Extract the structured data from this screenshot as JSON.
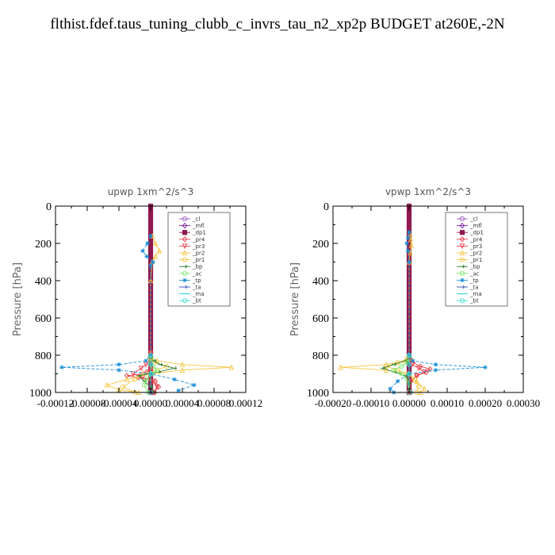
{
  "title": "flthist.fdef.taus_tuning_clubb_c_invrs_tau_n2_xp2p  BUDGET at260E,-2N",
  "chart_data": [
    {
      "type": "line",
      "title": "upwp   1xm^2/s^3",
      "ylabel": "Pressure [hPa]",
      "ylim": [
        1000,
        0
      ],
      "xlim": [
        -0.00012,
        0.00012
      ],
      "yticks": [
        "0",
        "200",
        "400",
        "600",
        "800",
        "1000"
      ],
      "xticks": [
        "-0.00012",
        "-0.00008",
        "-0.00004",
        "0.00000",
        "0.00004",
        "0.00008",
        "0.00012"
      ],
      "legend_placement": "top-right",
      "series": [
        {
          "name": "_cl",
          "color": "#9b59b6",
          "marker": "circle",
          "x": [
            0,
            0,
            0,
            0,
            0,
            0,
            0,
            0,
            0,
            0,
            0,
            0,
            0,
            0,
            0,
            0,
            0,
            0,
            0,
            0,
            0,
            0,
            0,
            0,
            0,
            0,
            0,
            0,
            0,
            0,
            0,
            0,
            0,
            0,
            0,
            0,
            0,
            0,
            0,
            0,
            0,
            0
          ],
          "y": [
            0,
            25,
            50,
            75,
            100,
            125,
            150,
            175,
            200,
            225,
            250,
            275,
            300,
            325,
            350,
            375,
            400,
            425,
            450,
            475,
            500,
            525,
            550,
            575,
            600,
            625,
            650,
            675,
            700,
            725,
            750,
            775,
            800,
            825,
            850,
            875,
            900,
            925,
            950,
            975,
            990,
            1000
          ]
        },
        {
          "name": "_mfl",
          "color": "#7b1fa2",
          "marker": "diamond",
          "x": [
            0,
            0,
            0,
            0,
            0,
            0,
            0,
            0,
            0,
            0,
            0,
            0,
            0,
            0,
            0,
            0,
            0,
            0,
            0,
            0,
            0,
            0,
            0,
            0,
            0,
            0,
            0,
            0,
            0,
            0,
            0,
            0,
            0,
            0,
            0,
            0,
            0,
            0,
            0,
            0,
            0,
            0
          ],
          "y": [
            0,
            25,
            50,
            75,
            100,
            125,
            150,
            175,
            200,
            225,
            250,
            275,
            300,
            325,
            350,
            375,
            400,
            425,
            450,
            475,
            500,
            525,
            550,
            575,
            600,
            625,
            650,
            675,
            700,
            725,
            750,
            775,
            800,
            825,
            850,
            875,
            900,
            925,
            950,
            975,
            990,
            1000
          ]
        },
        {
          "name": "_dp1",
          "color": "#8e1a4f",
          "marker": "square",
          "x": [
            0,
            0,
            0,
            0,
            0,
            0,
            0,
            0,
            0,
            0,
            0,
            0,
            0,
            0,
            0,
            0,
            0,
            0,
            0,
            0,
            0,
            0,
            0,
            0,
            0,
            0,
            0,
            0,
            0,
            0,
            0,
            0,
            0,
            0,
            0,
            0,
            0,
            0,
            0,
            0,
            0,
            0
          ],
          "y": [
            0,
            25,
            50,
            75,
            100,
            125,
            150,
            175,
            200,
            225,
            250,
            275,
            300,
            325,
            350,
            375,
            400,
            425,
            450,
            475,
            500,
            525,
            550,
            575,
            600,
            625,
            650,
            675,
            700,
            725,
            750,
            775,
            800,
            825,
            850,
            875,
            900,
            925,
            950,
            975,
            990,
            1000
          ]
        },
        {
          "name": "_pr4",
          "color": "#e8404a",
          "marker": "diamond",
          "x": [
            0,
            0,
            0,
            0,
            0,
            0,
            0,
            0,
            0,
            0,
            0,
            -5e-06,
            -1e-05,
            -3e-05,
            -1.5e-05,
            6e-06,
            1e-05,
            5e-06
          ],
          "y": [
            780,
            790,
            800,
            810,
            820,
            830,
            840,
            850,
            860,
            870,
            880,
            890,
            900,
            910,
            920,
            940,
            970,
            1000
          ]
        },
        {
          "name": "_pr3",
          "color": "#e8404a",
          "marker": "triangle-down",
          "x": [
            0,
            0,
            0,
            0,
            0,
            -6e-06,
            -1.2e-05,
            -2.2e-05,
            -1e-05,
            3e-06,
            8e-06,
            4e-06
          ],
          "y": [
            790,
            800,
            810,
            820,
            830,
            850,
            870,
            900,
            920,
            940,
            970,
            1000
          ]
        },
        {
          "name": "_pr2",
          "color": "#f5c542",
          "marker": "triangle",
          "x": [
            2e-06,
            6e-06,
            1.1e-05,
            6e-06,
            2e-06,
            0,
            0,
            8e-06,
            4e-05,
            0.000102,
            4e-05,
            0,
            -3e-05,
            -5.5e-05,
            -4e-05,
            -1.5e-05
          ],
          "y": [
            160,
            200,
            240,
            270,
            300,
            400,
            810,
            830,
            850,
            865,
            880,
            900,
            930,
            960,
            985,
            1000
          ]
        },
        {
          "name": "_pr1",
          "color": "#f5c542",
          "marker": "circle",
          "x": [
            0,
            0,
            5e-06,
            2e-05,
            8e-06,
            -1e-05,
            -2e-05,
            -3.5e-05,
            -2e-05
          ],
          "y": [
            800,
            820,
            840,
            860,
            880,
            900,
            930,
            970,
            1000
          ]
        },
        {
          "name": "_bp",
          "color": "#2e7d32",
          "marker": "arrow",
          "x": [
            0,
            4e-06,
            1.2e-05,
            3e-05,
            1e-05,
            -1.5e-05,
            -8e-06,
            0,
            4e-06
          ],
          "y": [
            810,
            830,
            850,
            870,
            890,
            910,
            940,
            970,
            1000
          ]
        },
        {
          "name": "_ac",
          "color": "#7be86b",
          "marker": "circle",
          "x": [
            0,
            0,
            3e-06,
            8e-06,
            2e-06,
            -5e-06,
            -8e-06,
            -3e-06
          ],
          "y": [
            820,
            840,
            860,
            880,
            900,
            930,
            960,
            1000
          ]
        },
        {
          "name": "_tp",
          "color": "#1a8fd6",
          "marker": "asterisk",
          "x": [
            0,
            -4e-06,
            -1e-05,
            -5e-06,
            3e-06,
            0,
            0,
            -6e-06,
            -4e-05,
            -0.000112,
            -4e-05,
            0,
            3e-05,
            5.5e-05,
            3.5e-05
          ],
          "y": [
            160,
            200,
            240,
            270,
            300,
            320,
            800,
            830,
            850,
            865,
            880,
            900,
            930,
            960,
            990
          ]
        },
        {
          "name": "_ta",
          "color": "#3f51b5",
          "marker": "arrow",
          "x": [
            0,
            0,
            0,
            0
          ],
          "y": [
            800,
            850,
            900,
            1000
          ]
        },
        {
          "name": "_ma",
          "color": "#26c6da",
          "marker": "dash",
          "x": [
            0,
            0,
            0,
            0
          ],
          "y": [
            800,
            850,
            900,
            1000
          ]
        },
        {
          "name": "_bt",
          "color": "#40e0d0",
          "marker": "circle",
          "x": [
            0,
            0,
            0,
            0
          ],
          "y": [
            800,
            850,
            900,
            1000
          ]
        }
      ]
    },
    {
      "type": "line",
      "title": "vpwp   1xm^2/s^3",
      "ylabel": "Pressure [hPa]",
      "ylim": [
        1000,
        0
      ],
      "xlim": [
        -0.0002,
        0.0003
      ],
      "yticks": [
        "0",
        "200",
        "400",
        "600",
        "800",
        "1000"
      ],
      "xticks": [
        "-0.00020",
        "-0.00010",
        "0.00000",
        "0.00010",
        "0.00020",
        "0.00030"
      ],
      "legend_placement": "top-right",
      "series": [
        {
          "name": "_cl",
          "color": "#9b59b6",
          "marker": "circle",
          "x": [
            0,
            0,
            0,
            0,
            0,
            0,
            0,
            0,
            0,
            0,
            0,
            0,
            0,
            0,
            0,
            0,
            0,
            0,
            0,
            0,
            0,
            0,
            0,
            0,
            0,
            0,
            0,
            0,
            0,
            0,
            0,
            0,
            0,
            0,
            0,
            0,
            0,
            0,
            0,
            0,
            0,
            0
          ],
          "y": [
            0,
            25,
            50,
            75,
            100,
            125,
            150,
            175,
            200,
            225,
            250,
            275,
            300,
            325,
            350,
            375,
            400,
            425,
            450,
            475,
            500,
            525,
            550,
            575,
            600,
            625,
            650,
            675,
            700,
            725,
            750,
            775,
            800,
            825,
            850,
            875,
            900,
            925,
            950,
            975,
            990,
            1000
          ]
        },
        {
          "name": "_mfl",
          "color": "#7b1fa2",
          "marker": "diamond",
          "x": [
            0,
            0,
            0,
            0,
            0,
            0,
            0,
            0,
            0,
            0,
            0,
            0,
            0,
            0,
            0,
            0,
            0,
            0,
            0,
            0,
            0,
            0,
            0,
            0,
            0,
            0,
            0,
            0,
            0,
            0,
            0,
            0,
            0,
            0,
            0,
            0,
            0,
            0,
            0,
            0,
            0,
            0
          ],
          "y": [
            0,
            25,
            50,
            75,
            100,
            125,
            150,
            175,
            200,
            225,
            250,
            275,
            300,
            325,
            350,
            375,
            400,
            425,
            450,
            475,
            500,
            525,
            550,
            575,
            600,
            625,
            650,
            675,
            700,
            725,
            750,
            775,
            800,
            825,
            850,
            875,
            900,
            925,
            950,
            975,
            990,
            1000
          ]
        },
        {
          "name": "_dp1",
          "color": "#8e1a4f",
          "marker": "square",
          "x": [
            0,
            0,
            0,
            0,
            0,
            0,
            0,
            0,
            0,
            0,
            0,
            0,
            0,
            0,
            0,
            0,
            0,
            0,
            0,
            0,
            0,
            0,
            0,
            0,
            0,
            0,
            0,
            0,
            0,
            0,
            0,
            0,
            0,
            0,
            0,
            0,
            0,
            0,
            0,
            0,
            0,
            0
          ],
          "y": [
            0,
            25,
            50,
            75,
            100,
            125,
            150,
            175,
            200,
            225,
            250,
            275,
            300,
            325,
            350,
            375,
            400,
            425,
            450,
            475,
            500,
            525,
            550,
            575,
            600,
            625,
            650,
            675,
            700,
            725,
            750,
            775,
            800,
            825,
            850,
            875,
            900,
            925,
            950,
            975,
            990,
            1000
          ]
        },
        {
          "name": "_pr4",
          "color": "#e8404a",
          "marker": "diamond",
          "x": [
            0,
            3e-06,
            1e-05,
            3e-05,
            5.5e-05,
            4.5e-05,
            2e-05,
            5e-06,
            0
          ],
          "y": [
            800,
            820,
            840,
            860,
            875,
            890,
            910,
            940,
            1000
          ]
        },
        {
          "name": "_pr3",
          "color": "#e8404a",
          "marker": "triangle-down",
          "x": [
            0,
            2e-06,
            8e-06,
            2.5e-05,
            4e-05,
            2e-05,
            5e-06,
            0
          ],
          "y": [
            810,
            830,
            850,
            870,
            890,
            910,
            940,
            1000
          ]
        },
        {
          "name": "_pr2",
          "color": "#f5c542",
          "marker": "triangle",
          "x": [
            2e-06,
            4e-06,
            6e-06,
            3e-06,
            0,
            0,
            -1e-05,
            -6e-05,
            -0.00018,
            -6e-05,
            0,
            2e-05,
            4e-05,
            3e-05
          ],
          "y": [
            150,
            180,
            210,
            250,
            300,
            800,
            830,
            850,
            865,
            880,
            900,
            940,
            980,
            1000
          ]
        },
        {
          "name": "_pr1",
          "color": "#f5c542",
          "marker": "circle",
          "x": [
            0,
            -5e-06,
            -3e-05,
            -6e-05,
            -3e-05,
            -5e-06,
            1.5e-05,
            2.5e-05,
            2e-05
          ],
          "y": [
            800,
            820,
            840,
            860,
            880,
            900,
            930,
            970,
            1000
          ]
        },
        {
          "name": "_bp",
          "color": "#2e7d32",
          "marker": "arrow",
          "x": [
            0,
            -1e-05,
            -4e-05,
            -7e-05,
            -4e-05,
            -1e-05,
            0,
            5e-06
          ],
          "y": [
            810,
            830,
            850,
            870,
            890,
            910,
            950,
            1000
          ]
        },
        {
          "name": "_ac",
          "color": "#7be86b",
          "marker": "circle",
          "x": [
            0,
            -5e-06,
            -2e-05,
            -4e-05,
            -2e-05,
            -5e-06,
            0
          ],
          "y": [
            820,
            840,
            860,
            880,
            900,
            930,
            1000
          ]
        },
        {
          "name": "_tp",
          "color": "#1a8fd6",
          "marker": "asterisk",
          "x": [
            0,
            -3e-06,
            -6e-06,
            -3e-06,
            0,
            0,
            1e-05,
            7e-05,
            0.0002,
            7e-05,
            0,
            -3e-05,
            -5e-05,
            -4e-05
          ],
          "y": [
            140,
            170,
            200,
            240,
            300,
            800,
            830,
            850,
            865,
            880,
            900,
            940,
            980,
            1000
          ]
        },
        {
          "name": "_ta",
          "color": "#3f51b5",
          "marker": "arrow",
          "x": [
            0,
            0,
            0,
            0
          ],
          "y": [
            800,
            850,
            900,
            1000
          ]
        },
        {
          "name": "_ma",
          "color": "#26c6da",
          "marker": "dash",
          "x": [
            0,
            0,
            0,
            0
          ],
          "y": [
            800,
            850,
            900,
            1000
          ]
        },
        {
          "name": "_bt",
          "color": "#40e0d0",
          "marker": "circle",
          "x": [
            0,
            0,
            0,
            0
          ],
          "y": [
            800,
            850,
            900,
            1000
          ]
        }
      ]
    }
  ]
}
